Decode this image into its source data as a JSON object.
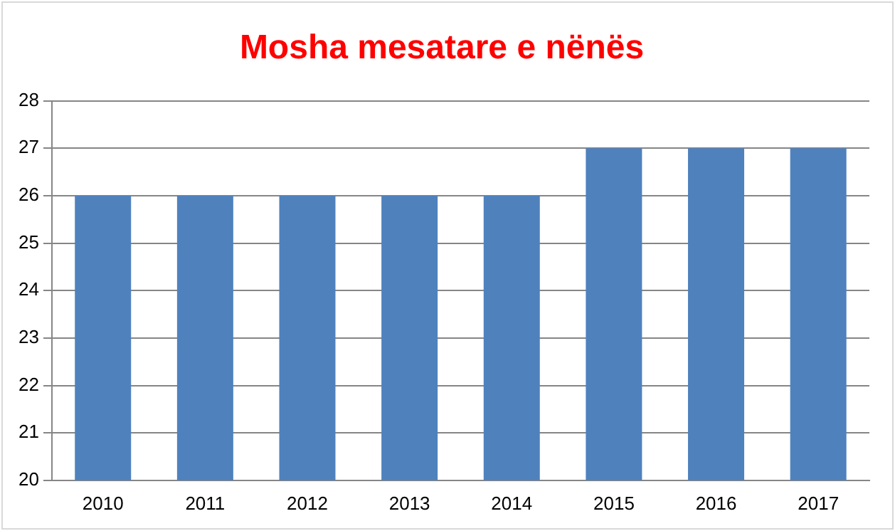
{
  "chart_data": {
    "type": "bar",
    "title": "Mosha mesatare e nënës",
    "categories": [
      "2010",
      "2011",
      "2012",
      "2013",
      "2014",
      "2015",
      "2016",
      "2017"
    ],
    "values": [
      26,
      26,
      26,
      26,
      26,
      27,
      27,
      27
    ],
    "color": "#4f81bd",
    "ylim": [
      20,
      28
    ],
    "yticks": [
      20,
      21,
      22,
      23,
      24,
      25,
      26,
      27,
      28
    ],
    "grid": "y",
    "legend": false
  }
}
